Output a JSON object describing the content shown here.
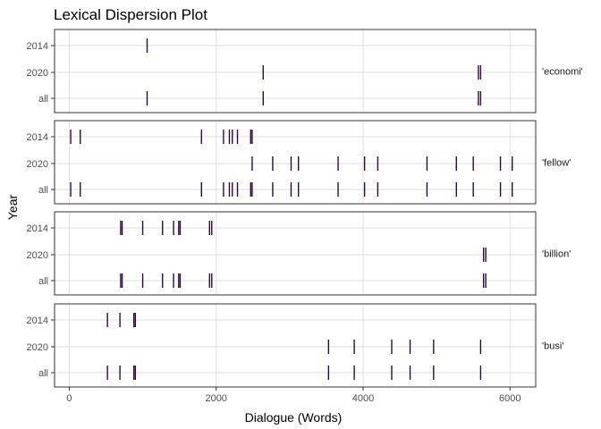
{
  "chart_data": {
    "type": "dispersion",
    "title": "Lexical Dispersion Plot",
    "xlabel": "Dialogue (Words)",
    "ylabel": "Year",
    "xlim": [
      -200,
      6350
    ],
    "xticks": [
      0,
      2000,
      4000,
      6000
    ],
    "xtick_labels": [
      "0",
      "2000",
      "4000",
      "6000"
    ],
    "y_categories": [
      "2014",
      "2020",
      "all"
    ],
    "grid": true,
    "mark_color": "#2b0b3f",
    "panels": [
      {
        "label": "'economi'",
        "rows": {
          "2014": [
            1060
          ],
          "2020": [
            2640,
            5570,
            5600
          ],
          "all": [
            1060,
            2640,
            5570,
            5600
          ]
        }
      },
      {
        "label": "'fellow'",
        "rows": {
          "2014": [
            20,
            150,
            1800,
            2100,
            2180,
            2220,
            2290,
            2470,
            2490
          ],
          "2020": [
            2490,
            2770,
            3020,
            3120,
            3660,
            4020,
            4200,
            4870,
            5270,
            5500,
            5870,
            6030
          ],
          "all": [
            20,
            150,
            1800,
            2100,
            2180,
            2220,
            2290,
            2470,
            2490,
            2770,
            3020,
            3120,
            3660,
            4020,
            4200,
            4870,
            5270,
            5500,
            5870,
            6030
          ]
        }
      },
      {
        "label": "'billion'",
        "rows": {
          "2014": [
            700,
            720,
            1000,
            1270,
            1420,
            1490,
            1510,
            1910,
            1940
          ],
          "2020": [
            5640,
            5670
          ],
          "all": [
            700,
            720,
            1000,
            1270,
            1420,
            1490,
            1510,
            1910,
            1940,
            5640,
            5670
          ]
        }
      },
      {
        "label": "'busi'",
        "rows": {
          "2014": [
            520,
            690,
            880,
            900
          ],
          "2020": [
            3530,
            3880,
            4390,
            4640,
            4960,
            5600
          ],
          "all": [
            520,
            690,
            880,
            900,
            3530,
            3880,
            4390,
            4640,
            4960,
            5600
          ]
        }
      }
    ]
  }
}
